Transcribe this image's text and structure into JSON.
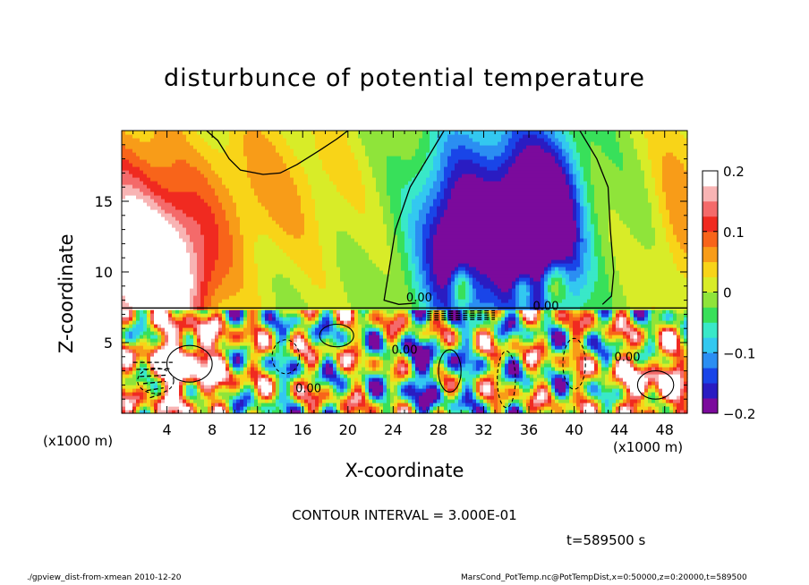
{
  "figure": {
    "title": "disturbunce of potential temperature",
    "contour_interval": "CONTOUR INTERVAL = 3.000E-01",
    "time": "t=589500 s",
    "footer_left": "./gpview_dist-from-xmean  2010-12-20",
    "footer_right": "MarsCond_PotTemp.nc@PotTempDist,x=0:50000,z=0:20000,t=589500"
  },
  "chart_data": {
    "type": "heatmap",
    "title": "disturbunce of potential temperature",
    "xlabel": "X-coordinate",
    "ylabel": "Z-coordinate",
    "x_unit": "(x1000 m)",
    "z_unit": "(x1000 m)",
    "xlim": [
      0,
      50
    ],
    "ylim": [
      0,
      20
    ],
    "x_ticks": [
      4,
      8,
      12,
      16,
      20,
      24,
      28,
      32,
      36,
      40,
      44,
      48
    ],
    "y_ticks": [
      5,
      10,
      15
    ],
    "colorbar": {
      "range": [
        -0.2,
        0.2
      ],
      "tick_values": [
        0.2,
        0.1,
        0,
        -0.1,
        -0.2
      ],
      "tick_labels": [
        "0.2",
        "0.1",
        "0",
        "−0.1",
        "−0.2"
      ],
      "colors": [
        "#7b0a9c",
        "#2a1cc2",
        "#1945e8",
        "#2b8ef2",
        "#33c8f0",
        "#39e8c8",
        "#38e05a",
        "#8fe43a",
        "#d8ec28",
        "#f8d418",
        "#f89c18",
        "#f8641a",
        "#f02a20",
        "#f46a6a",
        "#f8b4b4",
        "#ffffff"
      ]
    },
    "contour_labels": [
      {
        "text": "0.00",
        "x": 26.3,
        "z": 7.9
      },
      {
        "text": "0.00",
        "x": 37.5,
        "z": 7.3
      },
      {
        "text": "0.00",
        "x": 25.0,
        "z": 4.2
      },
      {
        "text": "0.00",
        "x": 16.5,
        "z": 1.5
      },
      {
        "text": "0.00",
        "x": 44.7,
        "z": 3.7
      }
    ],
    "contour_interval": 0.3,
    "time_s": 589500,
    "grid": false
  }
}
